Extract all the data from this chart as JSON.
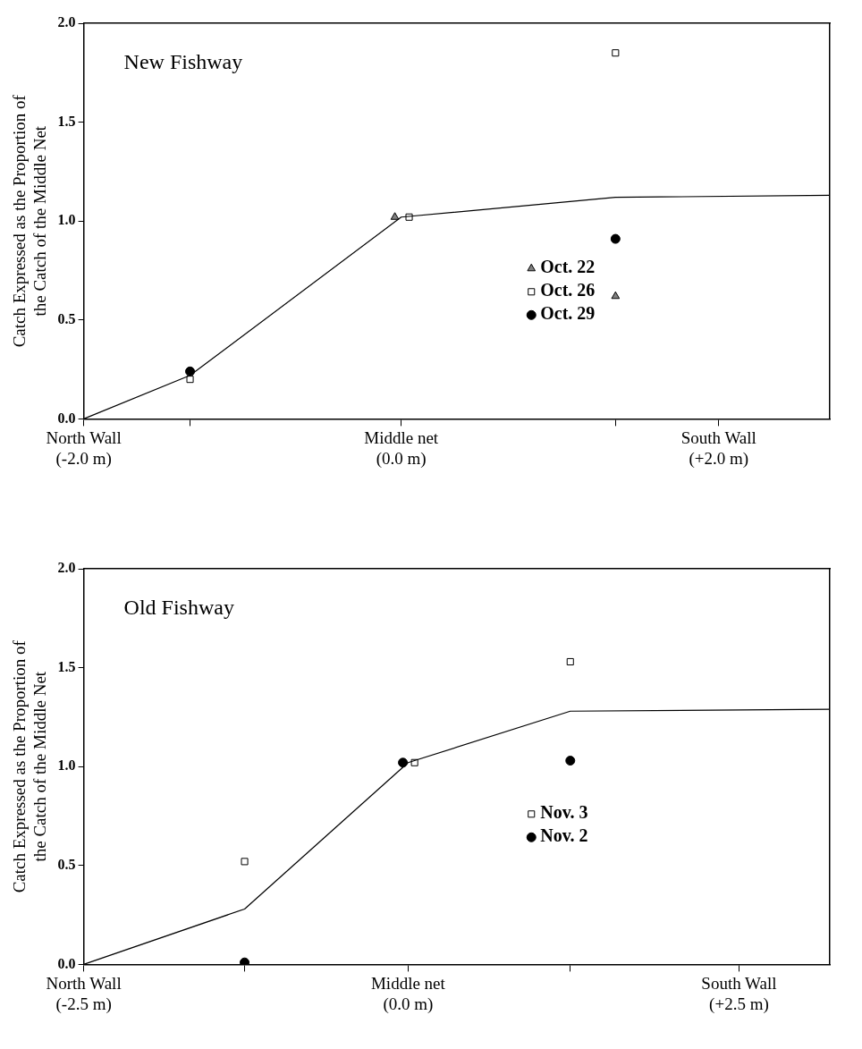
{
  "chart_data": [
    {
      "type": "scatter",
      "title": "New Fishway",
      "ylabel": "Catch Expressed as the Proportion of\nthe Catch of the Middle Net",
      "xlim": [
        -2,
        2.7
      ],
      "xticks": [
        {
          "value": -2,
          "label": "North Wall\n(-2.0 m)"
        },
        {
          "value": -1.33,
          "label": null
        },
        {
          "value": 0,
          "label": "Middle net\n(0.0 m)"
        },
        {
          "value": 1.35,
          "label": null
        },
        {
          "value": 2,
          "label": "South Wall\n(+2.0 m)"
        }
      ],
      "ylim": [
        0,
        2
      ],
      "yticks": [
        {
          "value": 0,
          "label": "0.0"
        },
        {
          "value": 0.5,
          "label": "0.5"
        },
        {
          "value": 1,
          "label": "1.0"
        },
        {
          "value": 1.5,
          "label": "1.5"
        },
        {
          "value": 2,
          "label": "2.0"
        }
      ],
      "legend": "center right",
      "grid": false,
      "series": [
        {
          "type": "line",
          "color": "#000000",
          "x": [
            -2,
            -1.33,
            0,
            1.35,
            2.7
          ],
          "values": [
            0,
            0.22,
            1.02,
            1.12,
            1.13
          ],
          "marker": "none"
        },
        {
          "name": "Oct. 22",
          "color": "#808080",
          "x": [
            -0.04,
            1.35
          ],
          "values": [
            1.02,
            0.62
          ],
          "marker": "triangle"
        },
        {
          "name": "Oct. 26",
          "color": "#000000",
          "x": [
            -1.33,
            0.05,
            1.35
          ],
          "values": [
            0.2,
            1.02,
            1.85
          ],
          "marker": "square"
        },
        {
          "name": "Oct. 29",
          "color": "#000000",
          "x": [
            -1.33,
            0,
            1.35
          ],
          "values": [
            0.24,
            null,
            0.91
          ],
          "marker": "circle"
        }
      ]
    },
    {
      "type": "scatter",
      "title": "Old Fishway",
      "ylabel": "Catch Expressed as the Proportion of\nthe Catch of the Middle Net",
      "xlim": [
        -2.5,
        3.25
      ],
      "xticks": [
        {
          "value": -2.5,
          "label": "North Wall\n(-2.5 m)"
        },
        {
          "value": -1.26,
          "label": null
        },
        {
          "value": 0,
          "label": "Middle net\n(0.0 m)"
        },
        {
          "value": 1.25,
          "label": null
        },
        {
          "value": 2.55,
          "label": "South Wall\n(+2.5 m)"
        }
      ],
      "ylim": [
        0,
        2
      ],
      "yticks": [
        {
          "value": 0,
          "label": "0.0"
        },
        {
          "value": 0.5,
          "label": "0.5"
        },
        {
          "value": 1,
          "label": "1.0"
        },
        {
          "value": 1.5,
          "label": "1.5"
        },
        {
          "value": 2,
          "label": "2.0"
        }
      ],
      "legend": "center right",
      "grid": false,
      "series": [
        {
          "type": "line",
          "color": "#000000",
          "x": [
            -2.5,
            -1.26,
            0,
            1.25,
            3.25
          ],
          "values": [
            0,
            0.28,
            1.02,
            1.28,
            1.29
          ],
          "marker": "none"
        },
        {
          "name": "Nov. 3",
          "color": "#000000",
          "x": [
            -1.26,
            0.05,
            1.25
          ],
          "values": [
            0.52,
            1.02,
            1.53
          ],
          "marker": "square"
        },
        {
          "name": "Nov. 2",
          "color": "#000000",
          "x": [
            -1.26,
            -0.04,
            1.25
          ],
          "values": [
            0.01,
            1.02,
            1.03
          ],
          "marker": "circle"
        }
      ]
    }
  ]
}
